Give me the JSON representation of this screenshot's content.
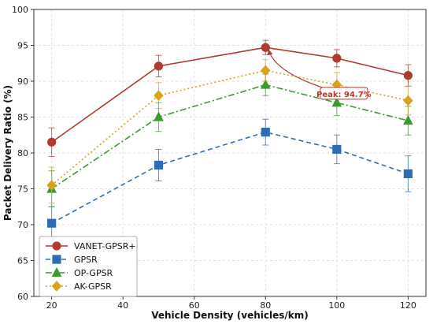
{
  "chart_data": {
    "type": "line",
    "xlabel": "Vehicle Density (vehicles/km)",
    "ylabel": "Packet Delivery Ratio (%)",
    "xlim": [
      15,
      125
    ],
    "ylim": [
      60,
      100
    ],
    "xticks": [
      20,
      40,
      60,
      80,
      100,
      120
    ],
    "yticks": [
      60,
      65,
      70,
      75,
      80,
      85,
      90,
      95,
      100
    ],
    "grid": true,
    "legend_position": "bottom-left",
    "series": [
      {
        "name": "VANET-GPSR+",
        "color": "#b03a2e",
        "marker": "circle",
        "dash": "solid",
        "x": [
          20,
          50,
          80,
          100,
          120
        ],
        "y": [
          81.5,
          92.1,
          94.7,
          93.2,
          90.8
        ],
        "err": [
          2.0,
          1.5,
          1.0,
          1.2,
          1.5
        ]
      },
      {
        "name": "GPSR",
        "color": "#2e6db4",
        "marker": "square",
        "dash": "dashed",
        "x": [
          20,
          50,
          80,
          100,
          120
        ],
        "y": [
          70.2,
          78.3,
          82.9,
          80.5,
          77.1
        ],
        "err": [
          2.3,
          2.2,
          1.8,
          2.0,
          2.5
        ]
      },
      {
        "name": "OP-GPSR",
        "color": "#3a9a2e",
        "marker": "triangle",
        "dash": "dashdot",
        "x": [
          20,
          50,
          80,
          100,
          120
        ],
        "y": [
          75.0,
          85.0,
          89.5,
          87.0,
          84.5
        ],
        "err": [
          2.5,
          2.0,
          1.5,
          1.8,
          2.0
        ]
      },
      {
        "name": "AK-GPSR",
        "color": "#d9a21b",
        "marker": "diamond",
        "dash": "dotted",
        "x": [
          20,
          50,
          80,
          100,
          120
        ],
        "y": [
          75.5,
          88.0,
          91.5,
          89.5,
          87.3
        ],
        "err": [
          2.5,
          1.8,
          1.5,
          1.7,
          2.0
        ]
      }
    ],
    "annotation": {
      "text": "Peak: 94.7%",
      "x": 80,
      "y": 94.7,
      "text_x": 102,
      "text_y": 88.2
    }
  }
}
